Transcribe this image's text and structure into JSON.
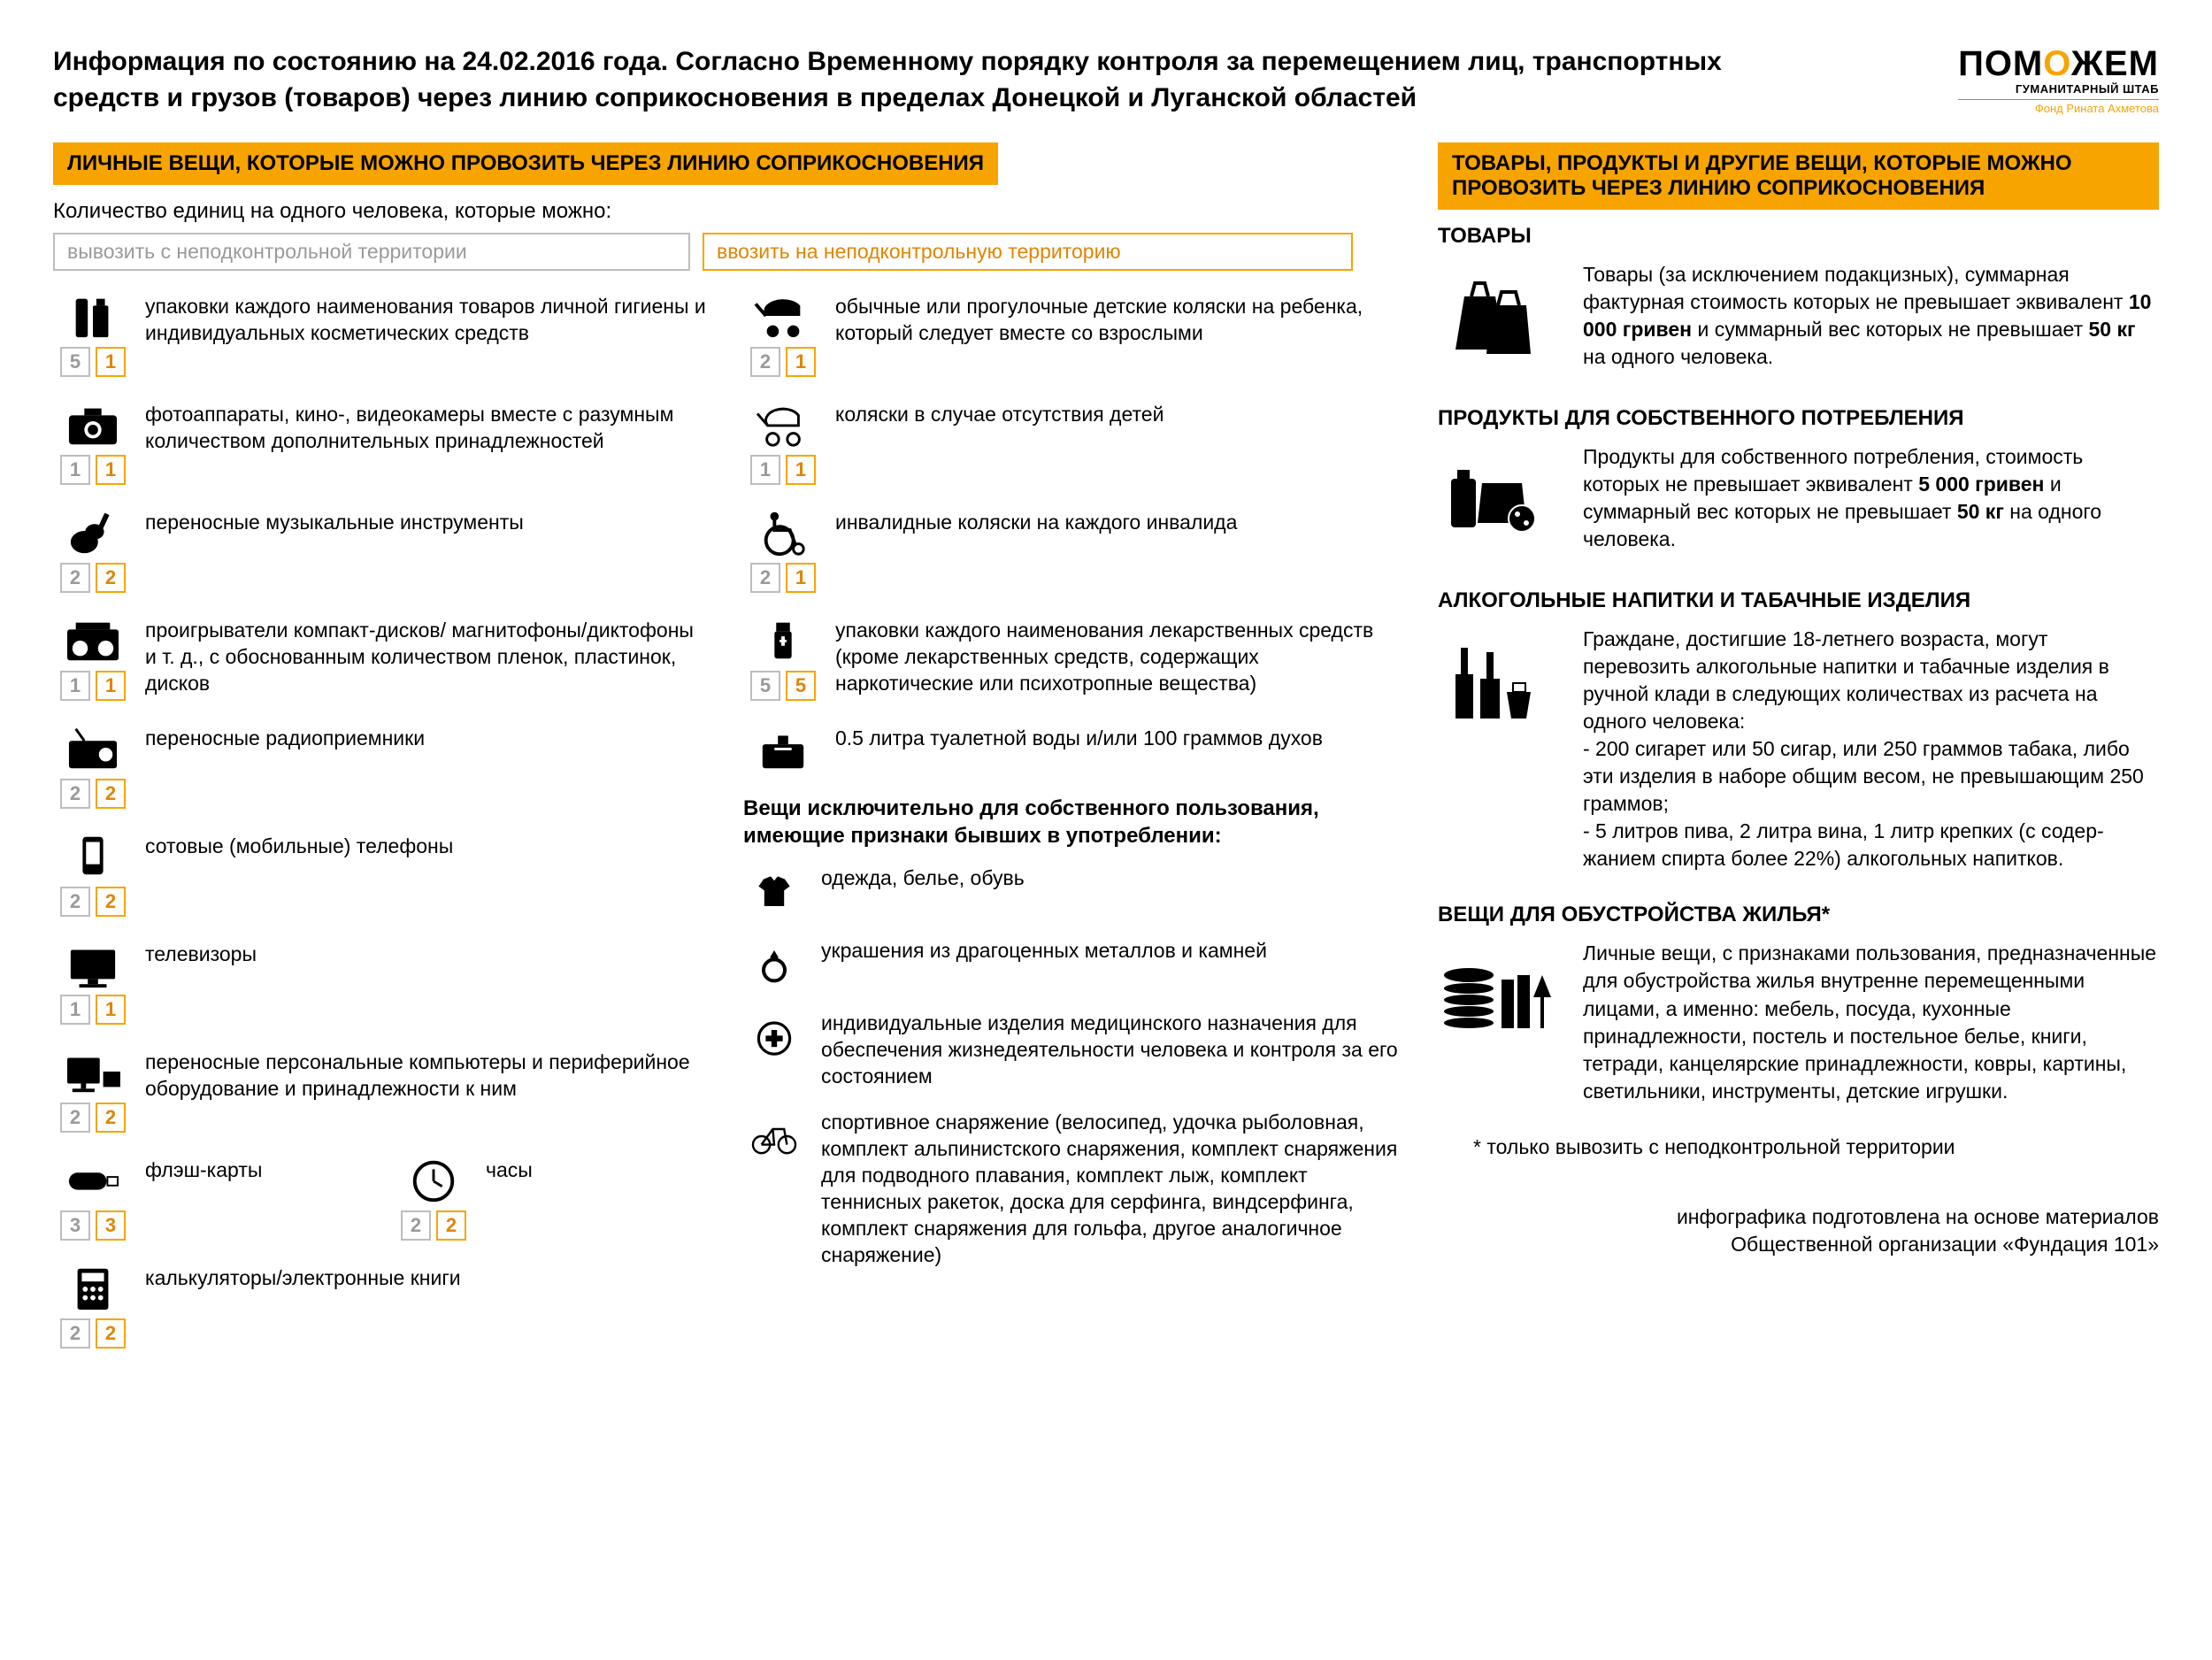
{
  "colors": {
    "accent": "#f7a400",
    "gray": "#9a9a9a",
    "text": "#000000",
    "bg": "#ffffff"
  },
  "header": {
    "title": "Информация по состоянию на 24.02.2016 года. Согласно Временному порядку контроля за перемещением лиц, транспортных средств и грузов (товаров) через линию соприкосновения в пределах Донецкой и Луганской областей",
    "logo_main_pre": "ПОМ",
    "logo_main_accent": "О",
    "logo_main_post": "ЖЕМ",
    "logo_sub": "ГУМАНИТАРНЫЙ ШТАБ",
    "logo_sub2": "Фонд Рината Ахметова"
  },
  "left": {
    "heading": "ЛИЧНЫЕ ВЕЩИ, КОТОРЫЕ МОЖНО ПРОВОЗИТЬ ЧЕРЕЗ ЛИНИЮ СОПРИКОСНОВЕНИЯ",
    "intro": "Количество единиц на одного человека, которые можно:",
    "tab_gray": "вывозить с неподконтрольной территории",
    "tab_orange": "ввозить на неподконтрольную территорию",
    "colA": [
      {
        "icon": "hygiene",
        "q1": "5",
        "q2": "1",
        "text": "упаковки каждого наименования товаров личной гигиены и индивиду­альных косметических средств"
      },
      {
        "icon": "camera",
        "q1": "1",
        "q2": "1",
        "text": "фотоаппараты, кино-, видеокамеры вместе с разумным количеством дополнительных принадлежностей"
      },
      {
        "icon": "guitar",
        "q1": "2",
        "q2": "2",
        "text": "переносные музыкальные инструменты"
      },
      {
        "icon": "boombox",
        "q1": "1",
        "q2": "1",
        "text": "проигрыватели компакт-дисков/ магнитофоны/диктофоны и т. д., с обоснованным количеством пленок, пластинок, дисков"
      },
      {
        "icon": "radio",
        "q1": "2",
        "q2": "2",
        "text": "переносные радиоприемники"
      },
      {
        "icon": "phone",
        "q1": "2",
        "q2": "2",
        "text": "сотовые (мобильные) телефоны"
      },
      {
        "icon": "tv",
        "q1": "1",
        "q2": "1",
        "text": "телевизоры"
      },
      {
        "icon": "computer",
        "q1": "2",
        "q2": "2",
        "text": "переносные персональные компьюте­ры и периферийное оборудование и принадлежности к ним"
      }
    ],
    "flash": {
      "icon": "usb",
      "q1": "3",
      "q2": "3",
      "text": "флэш-карты"
    },
    "clock": {
      "icon": "clock",
      "q1": "2",
      "q2": "2",
      "text": "часы"
    },
    "calc": {
      "icon": "calc",
      "q1": "2",
      "q2": "2",
      "text": "калькуляторы/электронные книги"
    },
    "colB": [
      {
        "icon": "stroller",
        "q1": "2",
        "q2": "1",
        "text": "обычные или прогулочные детские коляски на ребенка, который следует вместе со взрослыми"
      },
      {
        "icon": "stroller2",
        "q1": "1",
        "q2": "1",
        "text": "коляски в случае отсутствия детей"
      },
      {
        "icon": "wheelchair",
        "q1": "2",
        "q2": "1",
        "text": "инвалидные коляски на каждого инвалида"
      },
      {
        "icon": "meds",
        "q1": "5",
        "q2": "5",
        "text": "упаковки каждого наименования лекарственных средств (кроме лекарственных средств, содержа­щих наркотические или психотроп­ные вещества)"
      },
      {
        "icon": "perfume",
        "q1": "",
        "q2": "",
        "text": "0.5 литра туалетной воды и/или 100 граммов духов"
      }
    ],
    "personal_heading": "Вещи исключительно для собственного пользования, имеющие признаки бывших в употреблении:",
    "personal": [
      {
        "icon": "tshirt",
        "text": "одежда, белье, обувь"
      },
      {
        "icon": "ring",
        "text": "украшения из драгоценных металлов и камней"
      },
      {
        "icon": "medical",
        "text": "индивидуальные изделия медицин­ского назначения для обеспечения жизнедеятельности человека и кон­троля за его состоянием"
      },
      {
        "icon": "bike",
        "text": "спортивное снаряжение (велосипед, удочка рыболовная, комплект альпини­стского снаряжения, комплект снаряже­ния для подводного плавания, комплект лыж, комплект теннисных ракеток, доска для серфинга, виндсерфинга, комплект снаряжения для гольфа, другое аналогичное снаряжение)"
      }
    ]
  },
  "right": {
    "heading": "ТОВАРЫ, ПРОДУКТЫ И ДРУГИЕ ВЕЩИ, КОТОРЫЕ МОЖНО ПРОВОЗИТЬ ЧЕРЕЗ ЛИНИЮ СОПРИКОСНОВЕНИЯ",
    "sections": [
      {
        "title": "ТОВАРЫ",
        "icon": "bags",
        "html": "Товары (за исключением подакцизных), суммарная фактурная стоимость которых не превышает эквивалент <strong>10 000 гривен</strong> и суммарный вес которых не превышает <strong>50 кг</strong> на одного человека."
      },
      {
        "title": "ПРОДУКТЫ ДЛЯ СОБСТВЕННОГО ПОТРЕБЛЕНИЯ",
        "icon": "food",
        "html": "Продукты для собственного потребления, стоимость которых не превышает эквивалент <strong>5 000 гривен</strong> и суммарный вес которых не превышает <strong>50 кг</strong> на одного человека."
      },
      {
        "title": "АЛКОГОЛЬНЫЕ НАПИТКИ И ТАБАЧНЫЕ ИЗДЕЛИЯ",
        "icon": "alcohol",
        "html": "Граждане, достигшие 18-летнего возраста, могут перевозить алкогольные напитки и табачные изделия в ручной клади в следующих количествах из расчета на одного человека:<br>- 200 сигарет или 50 сигар, или 250 граммов табака, либо эти изделия в наборе общим весом, не превыша­ющим 250 граммов;<br>- 5 литров пива, 2 литра вина, 1 литр крепких (с содер­жанием спирта более 22%) алкогольных напитков."
      },
      {
        "title": "ВЕЩИ ДЛЯ ОБУСТРОЙСТВА ЖИЛЬЯ*",
        "icon": "household",
        "html": "Личные вещи, с признаками пользования, предна­значенные для обустройства жилья внутренне пере­мещенными лицами, а именно: мебель, посуда, кухон­ные принадлежности, постель и постельное белье, книги, тетради, канцелярские принадлежности, ковры, картины, светильники, инструменты, детские игрушки."
      }
    ],
    "footnote": "* только вывозить с неподконтрольной территории",
    "credit1": "инфографика подготовлена на основе материалов",
    "credit2": "Общественной организации «Фундация 101»"
  }
}
